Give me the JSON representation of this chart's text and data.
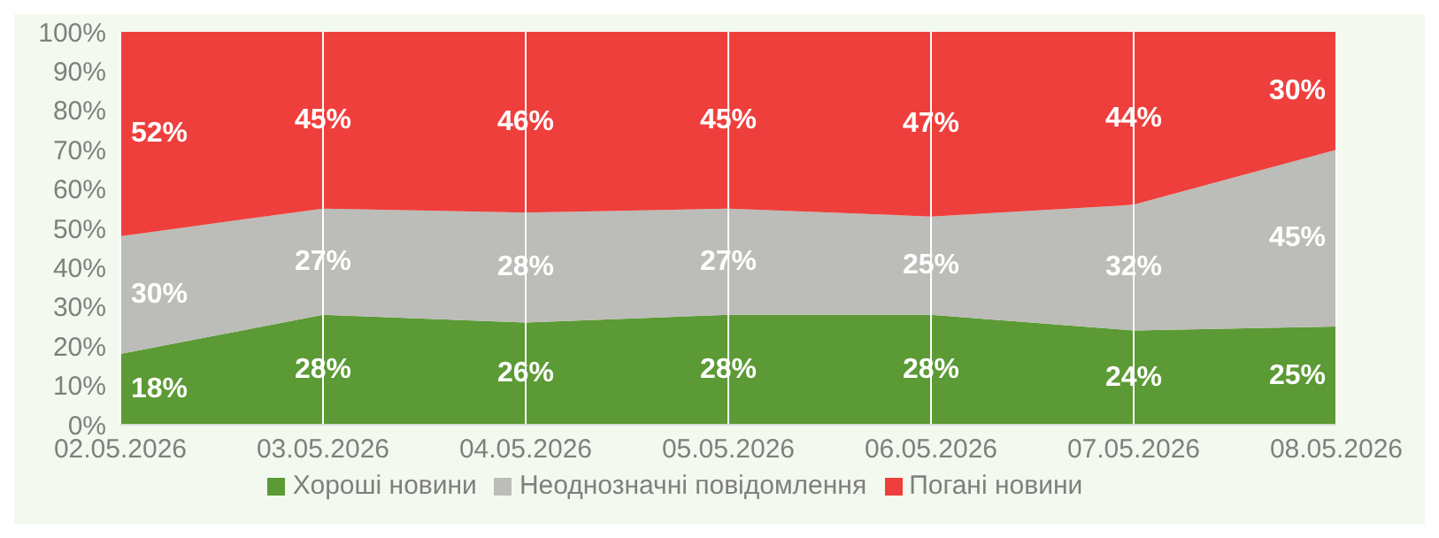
{
  "chart_data": {
    "type": "area",
    "stacked": true,
    "categories": [
      "02.05.2026",
      "03.05.2026",
      "04.05.2026",
      "05.05.2026",
      "06.05.2026",
      "07.05.2026",
      "08.05.2026"
    ],
    "series": [
      {
        "name": "Хороші новини",
        "color": "#5b9a35",
        "values": [
          18,
          28,
          26,
          28,
          28,
          24,
          25
        ],
        "value_labels": [
          "18%",
          "28%",
          "26%",
          "28%",
          "28%",
          "24%",
          "25%"
        ]
      },
      {
        "name": "Неоднозначні повідомлення",
        "color": "#bcbcb8",
        "values": [
          30,
          27,
          28,
          27,
          25,
          32,
          45
        ],
        "value_labels": [
          "30%",
          "27%",
          "28%",
          "27%",
          "25%",
          "32%",
          "45%"
        ]
      },
      {
        "name": "Погані новини",
        "color": "#ef3f3c",
        "values": [
          52,
          45,
          46,
          45,
          47,
          44,
          30
        ],
        "value_labels": [
          "52%",
          "45%",
          "46%",
          "45%",
          "47%",
          "44%",
          "30%"
        ]
      }
    ],
    "ylim": [
      0,
      100
    ],
    "yticks": [
      {
        "value": 0,
        "label": "0%"
      },
      {
        "value": 10,
        "label": "10%"
      },
      {
        "value": 20,
        "label": "20%"
      },
      {
        "value": 30,
        "label": "30%"
      },
      {
        "value": 40,
        "label": "40%"
      },
      {
        "value": 50,
        "label": "50%"
      },
      {
        "value": 60,
        "label": "60%"
      },
      {
        "value": 70,
        "label": "70%"
      },
      {
        "value": 80,
        "label": "80%"
      },
      {
        "value": 90,
        "label": "90%"
      },
      {
        "value": 100,
        "label": "100%"
      }
    ],
    "grid": "x",
    "legend": "bottom"
  }
}
